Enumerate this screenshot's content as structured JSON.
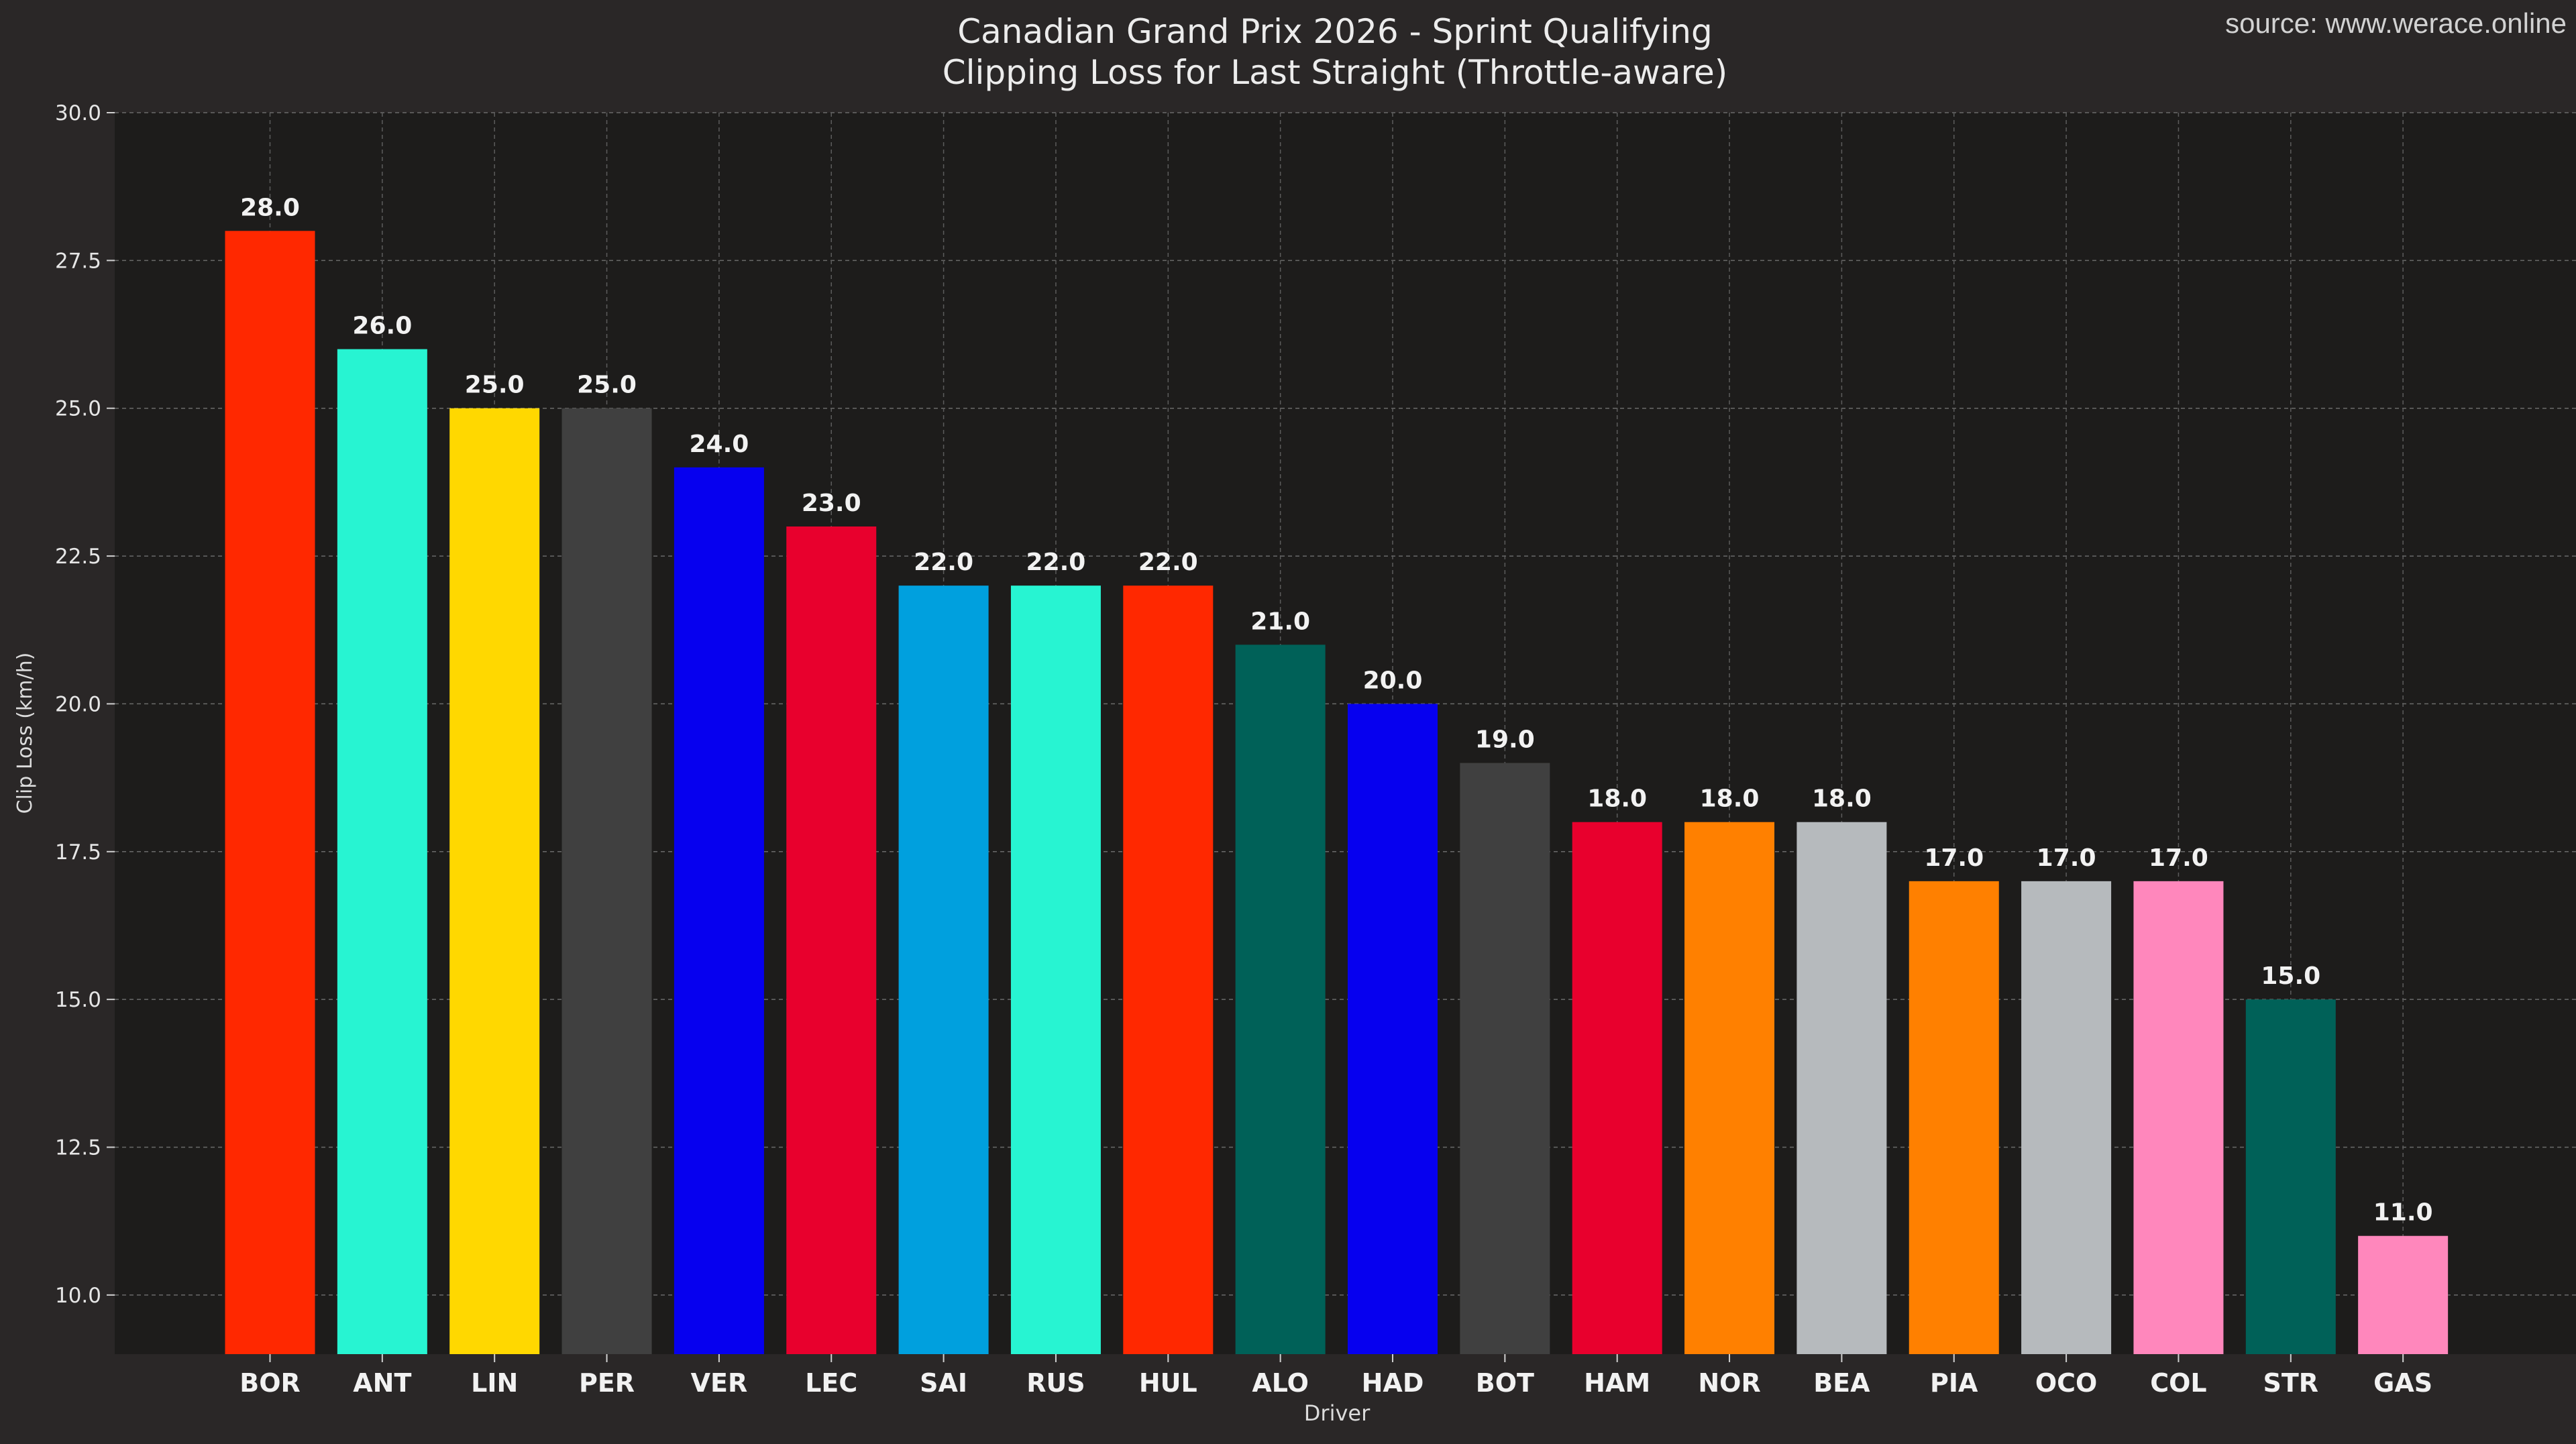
{
  "source_text": "source: www.werace.online",
  "chart_data": {
    "type": "bar",
    "title": "Canadian Grand Prix 2026 - Sprint Qualifying",
    "subtitle": "Clipping Loss for Last Straight (Throttle-aware)",
    "xlabel": "Driver",
    "ylabel": "Clip Loss (km/h)",
    "ylim": [
      9.0,
      30.0
    ],
    "yticks": [
      "10.0",
      "12.5",
      "15.0",
      "17.5",
      "20.0",
      "22.5",
      "25.0",
      "27.5",
      "30.0"
    ],
    "grid": true,
    "categories": [
      "BOR",
      "ANT",
      "LIN",
      "PER",
      "VER",
      "LEC",
      "SAI",
      "RUS",
      "HUL",
      "ALO",
      "HAD",
      "BOT",
      "HAM",
      "NOR",
      "BEA",
      "PIA",
      "OCO",
      "COL",
      "STR",
      "GAS"
    ],
    "values": [
      28.0,
      26.0,
      25.0,
      25.0,
      24.0,
      23.0,
      22.0,
      22.0,
      22.0,
      21.0,
      20.0,
      19.0,
      18.0,
      18.0,
      18.0,
      17.0,
      17.0,
      17.0,
      15.0,
      11.0
    ],
    "value_labels": [
      "28.0",
      "26.0",
      "25.0",
      "25.0",
      "24.0",
      "23.0",
      "22.0",
      "22.0",
      "22.0",
      "21.0",
      "20.0",
      "19.0",
      "18.0",
      "18.0",
      "18.0",
      "17.0",
      "17.0",
      "17.0",
      "15.0",
      "11.0"
    ],
    "colors": [
      "#ff2800",
      "#27f4d2",
      "#ffd800",
      "#404040",
      "#0600ef",
      "#e8002d",
      "#00a0de",
      "#27f4d2",
      "#ff2800",
      "#006158",
      "#0600ef",
      "#404040",
      "#e8002d",
      "#ff8000",
      "#b6babd",
      "#ff8000",
      "#b6babd",
      "#ff87bc",
      "#006158",
      "#ff87bc"
    ]
  }
}
